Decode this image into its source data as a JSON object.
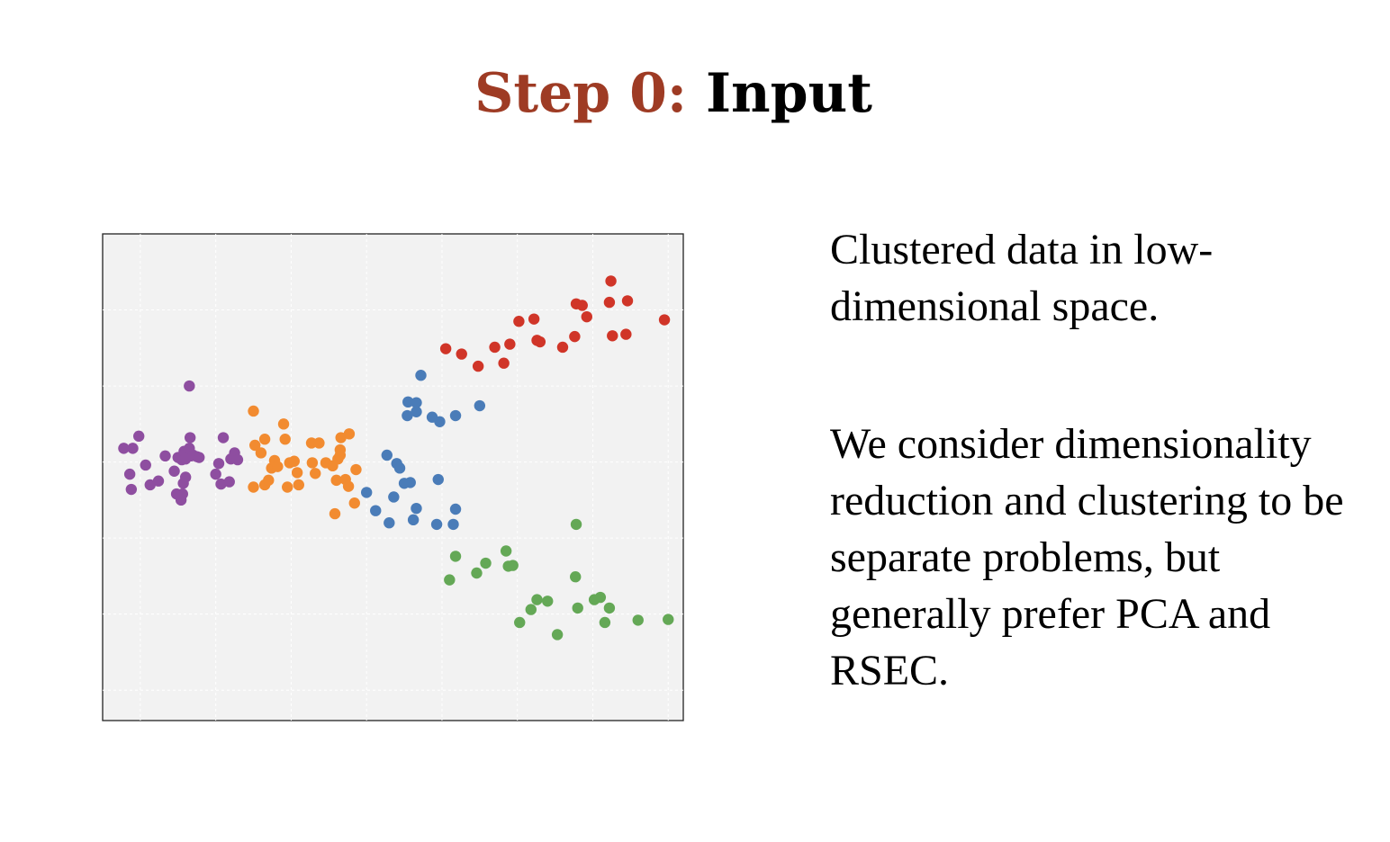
{
  "slide": {
    "title_step": "Step 0:",
    "title_main": "Input",
    "paragraphs": [
      "Clustered data in low-dimensional space.",
      "We consider dimensionality reduction and clustering to be separate problems, but generally prefer PCA and RSEC."
    ]
  },
  "chart_data": {
    "type": "scatter",
    "title": "",
    "xlabel": "",
    "ylabel": "",
    "xlim": [
      -0.5,
      7.2
    ],
    "ylim": [
      -3.4,
      3.0
    ],
    "grid": true,
    "background": "#f2f2f2",
    "tick_labels": false,
    "series": [
      {
        "color": "#8e4ea0",
        "points": [
          [
            -0.22,
            0.18
          ],
          [
            -0.1,
            0.18
          ],
          [
            -0.02,
            0.34
          ],
          [
            0.07,
            -0.04
          ],
          [
            -0.14,
            -0.16
          ],
          [
            -0.12,
            -0.36
          ],
          [
            0.13,
            -0.3
          ],
          [
            0.24,
            -0.25
          ],
          [
            0.33,
            0.08
          ],
          [
            0.45,
            -0.12
          ],
          [
            0.5,
            0.06
          ],
          [
            0.55,
            0.03
          ],
          [
            0.58,
            0.14
          ],
          [
            0.6,
            -0.2
          ],
          [
            0.57,
            -0.28
          ],
          [
            0.56,
            -0.42
          ],
          [
            0.54,
            -0.5
          ],
          [
            0.48,
            -0.42
          ],
          [
            0.6,
            0.04
          ],
          [
            0.67,
            0.08
          ],
          [
            0.65,
            0.18
          ],
          [
            0.66,
            0.32
          ],
          [
            0.7,
            0.09
          ],
          [
            0.75,
            0.07
          ],
          [
            0.78,
            0.06
          ],
          [
            1.0,
            -0.16
          ],
          [
            1.04,
            -0.02
          ],
          [
            1.07,
            -0.29
          ],
          [
            1.1,
            0.32
          ],
          [
            1.18,
            -0.26
          ],
          [
            1.2,
            0.04
          ],
          [
            1.25,
            0.12
          ],
          [
            1.29,
            0.03
          ],
          [
            0.65,
            1.0
          ]
        ]
      },
      {
        "color": "#f28b30",
        "points": [
          [
            1.5,
            0.67
          ],
          [
            1.52,
            0.22
          ],
          [
            1.6,
            0.12
          ],
          [
            1.65,
            0.3
          ],
          [
            1.5,
            -0.33
          ],
          [
            1.65,
            -0.3
          ],
          [
            1.7,
            -0.24
          ],
          [
            1.74,
            -0.08
          ],
          [
            1.78,
            0.02
          ],
          [
            1.82,
            -0.06
          ],
          [
            1.9,
            0.5
          ],
          [
            1.92,
            0.3
          ],
          [
            1.98,
            -0.01
          ],
          [
            1.95,
            -0.33
          ],
          [
            2.04,
            0.01
          ],
          [
            2.08,
            -0.14
          ],
          [
            2.1,
            -0.3
          ],
          [
            2.27,
            0.25
          ],
          [
            2.37,
            0.25
          ],
          [
            2.28,
            -0.01
          ],
          [
            2.32,
            -0.15
          ],
          [
            2.46,
            -0.01
          ],
          [
            2.55,
            -0.05
          ],
          [
            2.6,
            -0.24
          ],
          [
            2.62,
            0.04
          ],
          [
            2.65,
            0.09
          ],
          [
            2.65,
            0.16
          ],
          [
            2.66,
            0.32
          ],
          [
            2.72,
            -0.23
          ],
          [
            2.76,
            -0.32
          ],
          [
            2.77,
            0.37
          ],
          [
            2.86,
            -0.1
          ],
          [
            2.84,
            -0.54
          ],
          [
            2.58,
            -0.68
          ]
        ]
      },
      {
        "color": "#4a7cb8",
        "points": [
          [
            3.72,
            1.14
          ],
          [
            3.55,
            0.79
          ],
          [
            3.66,
            0.78
          ],
          [
            3.54,
            0.61
          ],
          [
            3.66,
            0.66
          ],
          [
            3.87,
            0.59
          ],
          [
            3.97,
            0.53
          ],
          [
            4.18,
            0.61
          ],
          [
            4.5,
            0.74
          ],
          [
            3.27,
            0.09
          ],
          [
            3.4,
            -0.02
          ],
          [
            3.44,
            -0.08
          ],
          [
            3.5,
            -0.28
          ],
          [
            3.58,
            -0.27
          ],
          [
            3.95,
            -0.23
          ],
          [
            3.0,
            -0.4
          ],
          [
            3.12,
            -0.64
          ],
          [
            3.36,
            -0.46
          ],
          [
            3.66,
            -0.61
          ],
          [
            3.62,
            -0.76
          ],
          [
            3.3,
            -0.8
          ],
          [
            3.93,
            -0.82
          ],
          [
            4.15,
            -0.82
          ],
          [
            4.18,
            -0.62
          ]
        ]
      },
      {
        "color": "#d03528",
        "points": [
          [
            4.05,
            1.49
          ],
          [
            4.26,
            1.42
          ],
          [
            4.48,
            1.26
          ],
          [
            4.7,
            1.51
          ],
          [
            4.82,
            1.3
          ],
          [
            4.9,
            1.55
          ],
          [
            5.02,
            1.85
          ],
          [
            5.22,
            1.88
          ],
          [
            5.26,
            1.6
          ],
          [
            5.3,
            1.58
          ],
          [
            5.6,
            1.51
          ],
          [
            5.76,
            1.65
          ],
          [
            5.78,
            2.08
          ],
          [
            5.86,
            2.06
          ],
          [
            5.92,
            1.91
          ],
          [
            6.22,
            2.1
          ],
          [
            6.24,
            2.38
          ],
          [
            6.26,
            1.66
          ],
          [
            6.44,
            1.68
          ],
          [
            6.46,
            2.12
          ],
          [
            6.95,
            1.87
          ]
        ]
      },
      {
        "color": "#64a856",
        "points": [
          [
            5.78,
            -0.82
          ],
          [
            4.18,
            -1.24
          ],
          [
            4.46,
            -1.46
          ],
          [
            4.58,
            -1.33
          ],
          [
            4.85,
            -1.17
          ],
          [
            4.88,
            -1.37
          ],
          [
            4.94,
            -1.36
          ],
          [
            4.1,
            -1.55
          ],
          [
            5.03,
            -2.11
          ],
          [
            5.18,
            -1.94
          ],
          [
            5.26,
            -1.81
          ],
          [
            5.4,
            -1.83
          ],
          [
            5.77,
            -1.51
          ],
          [
            5.8,
            -1.92
          ],
          [
            6.02,
            -1.81
          ],
          [
            6.1,
            -1.78
          ],
          [
            6.16,
            -2.11
          ],
          [
            6.22,
            -1.92
          ],
          [
            5.53,
            -2.27
          ],
          [
            6.6,
            -2.08
          ],
          [
            7.0,
            -2.07
          ]
        ]
      }
    ]
  }
}
